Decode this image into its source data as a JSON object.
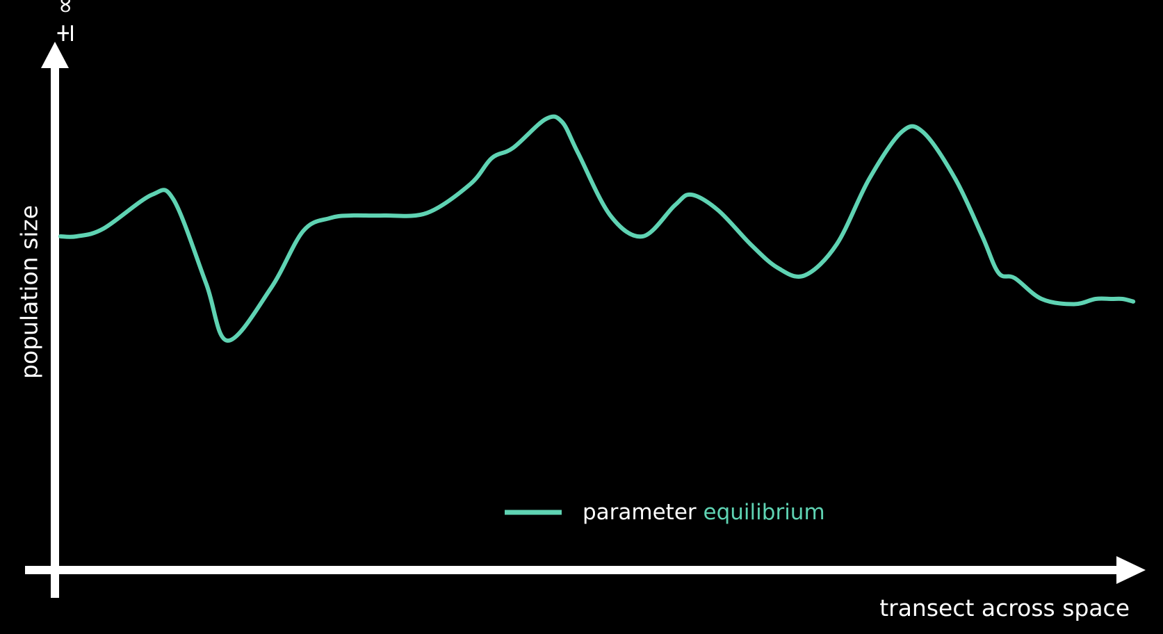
{
  "chart_data": {
    "type": "line",
    "title": "",
    "xlabel": "transect across space",
    "ylabel": "population size",
    "y_top_label": "± ∞",
    "grid": false,
    "legend_position": "bottom-center",
    "xlim": [
      0,
      100
    ],
    "ylim": [
      0,
      100
    ],
    "series": [
      {
        "legend_prefix": "parameter",
        "name": "equilibrium",
        "color": "#5fd3b3",
        "x": [
          0,
          1.5,
          4,
          8.5,
          10.5,
          13.5,
          15.5,
          19.5,
          22.5,
          25,
          27,
          30,
          34,
          38,
          40,
          42,
          45,
          46.5,
          48,
          51,
          54,
          57,
          58.5,
          61,
          64,
          66.5,
          69,
          72,
          75,
          78,
          80,
          83,
          85.5,
          87,
          88.5,
          91,
          94,
          96,
          97.5,
          98.5,
          99.5
        ],
        "y": [
          64,
          64,
          65.5,
          72,
          71,
          55,
          44,
          54,
          65,
          67.5,
          68,
          68,
          68.5,
          74,
          79,
          81,
          86.5,
          86,
          80,
          68,
          64,
          70,
          72,
          69,
          62.5,
          58,
          56.5,
          62.5,
          75,
          84,
          84,
          75,
          64,
          57,
          56,
          52,
          51,
          52,
          52,
          52,
          51.5
        ]
      }
    ]
  }
}
